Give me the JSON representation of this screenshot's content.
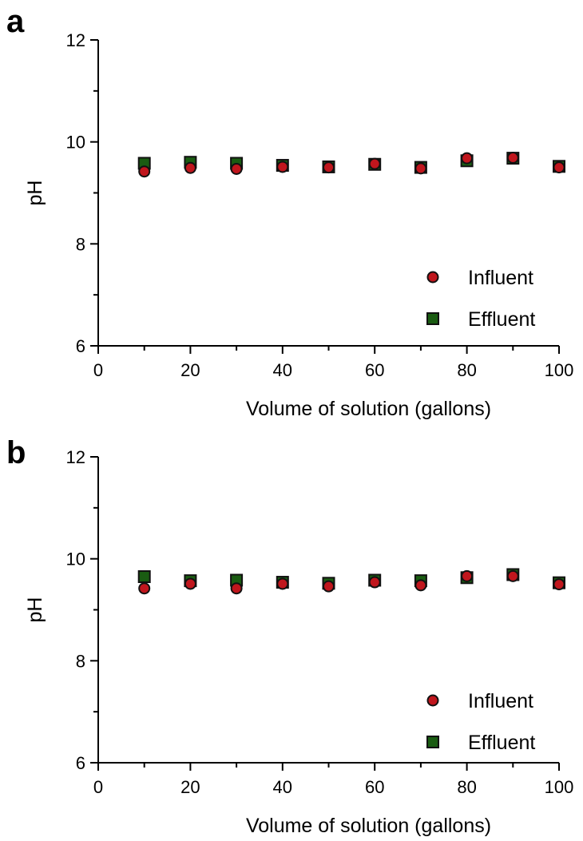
{
  "chart_data": [
    {
      "panel_label": "a",
      "type": "scatter",
      "xlabel": "Volume of solution (gallons)",
      "ylabel": "pH",
      "xlim": [
        0,
        100
      ],
      "ylim": [
        6,
        12
      ],
      "x_ticks": [
        0,
        20,
        40,
        60,
        80,
        100
      ],
      "y_ticks": [
        6,
        8,
        10,
        12
      ],
      "grid": false,
      "legend_position": "bottom-right",
      "series": [
        {
          "name": "Effluent",
          "marker": "square",
          "color": "#1a5c12",
          "x": [
            10,
            20,
            30,
            40,
            50,
            60,
            70,
            80,
            90,
            100
          ],
          "y": [
            9.58,
            9.6,
            9.58,
            9.54,
            9.51,
            9.56,
            9.5,
            9.63,
            9.68,
            9.52
          ]
        },
        {
          "name": "Influent",
          "marker": "circle",
          "color": "#c0161d",
          "x": [
            10,
            20,
            30,
            40,
            50,
            60,
            70,
            80,
            90,
            100
          ],
          "y": [
            9.42,
            9.49,
            9.47,
            9.51,
            9.5,
            9.57,
            9.48,
            9.68,
            9.69,
            9.5
          ]
        }
      ]
    },
    {
      "panel_label": "b",
      "type": "scatter",
      "xlabel": "Volume of solution (gallons)",
      "ylabel": "pH",
      "xlim": [
        0,
        100
      ],
      "ylim": [
        6,
        12
      ],
      "x_ticks": [
        0,
        20,
        40,
        60,
        80,
        100
      ],
      "y_ticks": [
        6,
        8,
        10,
        12
      ],
      "grid": false,
      "legend_position": "bottom-right",
      "series": [
        {
          "name": "Effluent",
          "marker": "square",
          "color": "#1a5c12",
          "x": [
            10,
            20,
            30,
            40,
            50,
            60,
            70,
            80,
            90,
            100
          ],
          "y": [
            9.65,
            9.57,
            9.58,
            9.54,
            9.52,
            9.58,
            9.57,
            9.63,
            9.69,
            9.53
          ]
        },
        {
          "name": "Influent",
          "marker": "circle",
          "color": "#c0161d",
          "x": [
            10,
            20,
            30,
            40,
            50,
            60,
            70,
            80,
            90,
            100
          ],
          "y": [
            9.42,
            9.51,
            9.42,
            9.51,
            9.46,
            9.54,
            9.48,
            9.66,
            9.66,
            9.5
          ]
        }
      ]
    }
  ]
}
